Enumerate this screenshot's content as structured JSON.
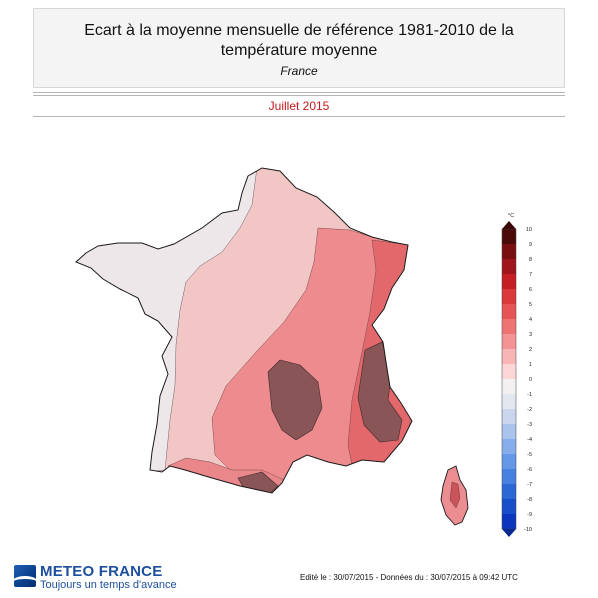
{
  "header": {
    "title": "Ecart à la moyenne mensuelle de référence 1981-2010 de la température moyenne",
    "subtitle": "France",
    "period": "Juillet 2015"
  },
  "colorbar": {
    "unit": "°C",
    "labels": [
      "10",
      "9",
      "8",
      "7",
      "6",
      "5",
      "4",
      "3",
      "2",
      "1",
      "0",
      "-1",
      "-2",
      "-3",
      "-4",
      "-5",
      "-6",
      "-7",
      "-8",
      "-9",
      "-10"
    ],
    "colors": [
      "#4a0a0a",
      "#7a0f12",
      "#a0151b",
      "#c51e25",
      "#dc3a3a",
      "#e65555",
      "#ee7474",
      "#f39393",
      "#f8b5b5",
      "#fcd6d6",
      "#f3f0f2",
      "#e3e7f0",
      "#cad6ee",
      "#a9c3ec",
      "#86aeea",
      "#6598e6",
      "#4680e0",
      "#2c67d6",
      "#174fcb",
      "#0a37bd"
    ]
  },
  "legend_values": {
    "north_west": "0 to 1 °C",
    "north": "1 to 2 °C",
    "centre_east": "2 to 3 °C",
    "east": "3 to 4 °C",
    "mountains": "4 to 6 °C"
  },
  "branding": {
    "name": "METEO FRANCE",
    "tagline": "Toujours un temps d'avance"
  },
  "footer": {
    "note": "Edité le : 30/07/2015 - Données du : 30/07/2015 à 09:42 UTC"
  }
}
